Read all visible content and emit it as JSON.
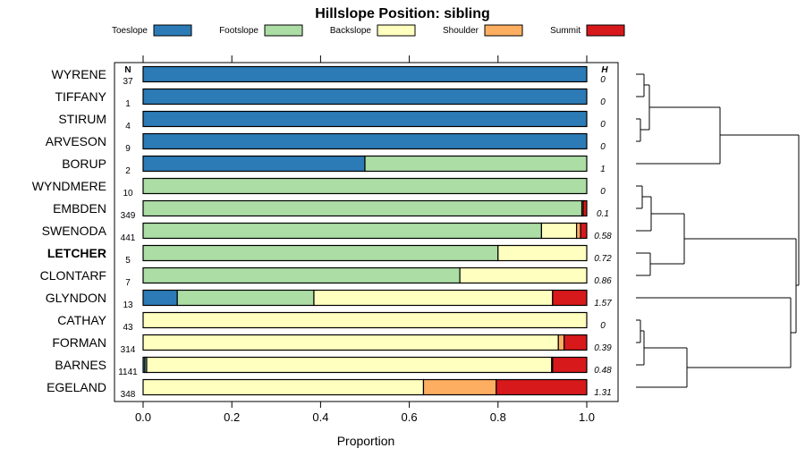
{
  "chart_data": {
    "type": "bar",
    "stacked": true,
    "orientation": "horizontal",
    "title": "Hillslope Position: sibling",
    "xlabel": "Proportion",
    "xlim": [
      0,
      1
    ],
    "xticks": [
      "0.0",
      "0.2",
      "0.4",
      "0.6",
      "0.8",
      "1.0"
    ],
    "n_header": "N",
    "h_header": "H",
    "legend": [
      {
        "name": "Toeslope",
        "color": "#2c7bb6"
      },
      {
        "name": "Footslope",
        "color": "#abdda4"
      },
      {
        "name": "Backslope",
        "color": "#ffffbf"
      },
      {
        "name": "Shoulder",
        "color": "#fdae61"
      },
      {
        "name": "Summit",
        "color": "#d7191c"
      }
    ],
    "rows": [
      {
        "label": "WYRENE",
        "n": "37",
        "h": "0",
        "bold": false,
        "values": [
          1,
          0,
          0,
          0,
          0
        ]
      },
      {
        "label": "TIFFANY",
        "n": "1",
        "h": "0",
        "bold": false,
        "values": [
          1,
          0,
          0,
          0,
          0
        ]
      },
      {
        "label": "STIRUM",
        "n": "4",
        "h": "0",
        "bold": false,
        "values": [
          1,
          0,
          0,
          0,
          0
        ]
      },
      {
        "label": "ARVESON",
        "n": "9",
        "h": "0",
        "bold": false,
        "values": [
          1,
          0,
          0,
          0,
          0
        ]
      },
      {
        "label": "BORUP",
        "n": "2",
        "h": "1",
        "bold": false,
        "values": [
          0.5,
          0.5,
          0,
          0,
          0
        ]
      },
      {
        "label": "WYNDMERE",
        "n": "10",
        "h": "0",
        "bold": false,
        "values": [
          0,
          1,
          0,
          0,
          0
        ]
      },
      {
        "label": "EMBDEN",
        "n": "349",
        "h": "0.1",
        "bold": false,
        "values": [
          0,
          0.989,
          0,
          0.003,
          0.008
        ]
      },
      {
        "label": "SWENODA",
        "n": "441",
        "h": "0.58",
        "bold": false,
        "values": [
          0,
          0.898,
          0.079,
          0.009,
          0.014
        ]
      },
      {
        "label": "LETCHER",
        "n": "5",
        "h": "0.72",
        "bold": true,
        "values": [
          0,
          0.8,
          0.2,
          0,
          0
        ]
      },
      {
        "label": "CLONTARF",
        "n": "7",
        "h": "0.86",
        "bold": false,
        "values": [
          0,
          0.714,
          0.286,
          0,
          0
        ]
      },
      {
        "label": "GLYNDON",
        "n": "13",
        "h": "1.57",
        "bold": false,
        "values": [
          0.077,
          0.308,
          0.538,
          0,
          0.077
        ]
      },
      {
        "label": "CATHAY",
        "n": "43",
        "h": "0",
        "bold": false,
        "values": [
          0,
          0,
          1,
          0,
          0
        ]
      },
      {
        "label": "FORMAN",
        "n": "314",
        "h": "0.39",
        "bold": false,
        "values": [
          0,
          0,
          0.936,
          0.013,
          0.051
        ]
      },
      {
        "label": "BARNES",
        "n": "1141",
        "h": "0.48",
        "bold": false,
        "values": [
          0.004,
          0.004,
          0.913,
          0.002,
          0.077
        ]
      },
      {
        "label": "EGELAND",
        "n": "348",
        "h": "1.31",
        "bold": false,
        "values": [
          0,
          0,
          0.632,
          0.164,
          0.204
        ]
      }
    ],
    "dendrogram": {
      "merges": [
        [
          [
            0,
            1
          ],
          [
            2,
            3
          ]
        ],
        [
          4
        ],
        [
          [
            5,
            6
          ],
          [
            7
          ]
        ],
        [
          [
            8,
            9
          ]
        ],
        [
          10
        ],
        [
          [
            11,
            12
          ],
          [
            13
          ]
        ],
        [
          14
        ]
      ]
    }
  }
}
